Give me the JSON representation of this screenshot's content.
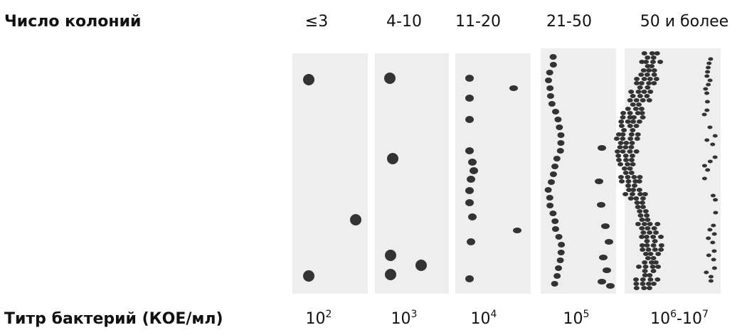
{
  "header": {
    "title": "Число колоний",
    "columns": [
      "≤3",
      "4-10",
      "11-20",
      "21-50",
      "50 и более"
    ]
  },
  "footer": {
    "title": "Титр бактерий (КОЕ/мл)",
    "titers": [
      [
        {
          "base": "10",
          "exp": "2"
        }
      ],
      [
        {
          "base": "10",
          "exp": "3"
        }
      ],
      [
        {
          "base": "10",
          "exp": "4"
        }
      ],
      [
        {
          "base": "10",
          "exp": "5"
        }
      ],
      [
        {
          "base": "10",
          "exp": "6"
        },
        {
          "sep": "-"
        },
        {
          "base": "10",
          "exp": "7"
        }
      ]
    ]
  }
}
